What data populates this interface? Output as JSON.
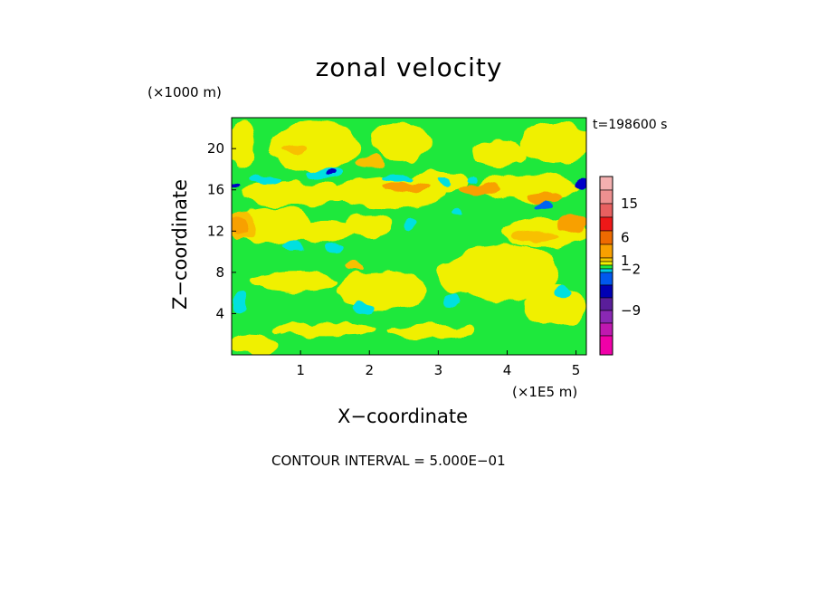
{
  "chart_data": {
    "type": "heatmap",
    "title": "zonal velocity",
    "xlabel": "X−coordinate",
    "ylabel": "Z−coordinate",
    "x_unit": "(×1E5 m)",
    "y_unit": "(×1000 m)",
    "annotation": "t=198600 s",
    "footer": "CONTOUR INTERVAL = 5.000E−01",
    "xlim": [
      0,
      5.15
    ],
    "ylim": [
      0,
      23
    ],
    "x_ticks": [
      "1",
      "2",
      "3",
      "4",
      "5"
    ],
    "y_ticks": [
      "4",
      "8",
      "12",
      "16",
      "20"
    ],
    "colorbar": {
      "tick_labels": [
        "15",
        "6",
        "1",
        "−2",
        "−9"
      ],
      "levels": [
        {
          "color": "#f4b0b0"
        },
        {
          "color": "#ee9090"
        },
        {
          "color": "#e86060"
        },
        {
          "color": "#ee1818"
        },
        {
          "color": "#ee6a00"
        },
        {
          "color": "#f8a000"
        },
        {
          "color": "#f6c800"
        },
        {
          "color": "#f0f000"
        },
        {
          "color": "#1ee83c"
        },
        {
          "color": "#00c8e6"
        },
        {
          "color": "#0058ee"
        },
        {
          "color": "#0000b4"
        },
        {
          "color": "#5a1e9a"
        },
        {
          "color": "#8a28b4"
        },
        {
          "color": "#c018b0"
        },
        {
          "color": "#f000a8"
        }
      ]
    },
    "field_colors": {
      "green": "#1ee83c",
      "yellow": "#f0f000",
      "light_orange": "#f8c000",
      "orange": "#f8a000",
      "cyan": "#00e0e0",
      "blue": "#0064f0",
      "navy": "#0000c8"
    },
    "background_value_color": "green",
    "regions": [
      {
        "cx": 0.15,
        "cy": 20.5,
        "rx": 0.2,
        "ry": 2.2,
        "color": "yellow"
      },
      {
        "cx": 1.2,
        "cy": 20.3,
        "rx": 0.65,
        "ry": 2.4,
        "color": "yellow"
      },
      {
        "cx": 2.45,
        "cy": 20.7,
        "rx": 0.45,
        "ry": 1.9,
        "color": "yellow"
      },
      {
        "cx": 4.7,
        "cy": 20.6,
        "rx": 0.5,
        "ry": 2.0,
        "color": "yellow"
      },
      {
        "cx": 3.9,
        "cy": 19.5,
        "rx": 0.4,
        "ry": 1.3,
        "color": "yellow"
      },
      {
        "cx": 2.0,
        "cy": 18.6,
        "rx": 0.22,
        "ry": 0.6,
        "color": "light_orange"
      },
      {
        "cx": 0.9,
        "cy": 19.9,
        "rx": 0.18,
        "ry": 0.5,
        "color": "light_orange"
      },
      {
        "cx": 0.9,
        "cy": 15.6,
        "rx": 0.8,
        "ry": 1.2,
        "color": "yellow"
      },
      {
        "cx": 2.3,
        "cy": 15.8,
        "rx": 0.8,
        "ry": 1.6,
        "color": "yellow"
      },
      {
        "cx": 3.0,
        "cy": 16.8,
        "rx": 0.45,
        "ry": 1.0,
        "color": "yellow"
      },
      {
        "cx": 4.3,
        "cy": 16.2,
        "rx": 0.75,
        "ry": 1.3,
        "color": "yellow"
      },
      {
        "cx": 2.55,
        "cy": 16.2,
        "rx": 0.35,
        "ry": 0.55,
        "color": "orange"
      },
      {
        "cx": 3.6,
        "cy": 16.0,
        "rx": 0.3,
        "ry": 0.55,
        "color": "orange"
      },
      {
        "cx": 4.55,
        "cy": 15.3,
        "rx": 0.25,
        "ry": 0.5,
        "color": "orange"
      },
      {
        "cx": 0.5,
        "cy": 16.9,
        "rx": 0.22,
        "ry": 0.4,
        "color": "cyan"
      },
      {
        "cx": 1.35,
        "cy": 17.6,
        "rx": 0.25,
        "ry": 0.5,
        "color": "cyan"
      },
      {
        "cx": 1.4,
        "cy": 17.7,
        "rx": 0.07,
        "ry": 0.25,
        "color": "navy"
      },
      {
        "cx": 2.4,
        "cy": 17.2,
        "rx": 0.22,
        "ry": 0.4,
        "color": "cyan"
      },
      {
        "cx": 4.5,
        "cy": 14.5,
        "rx": 0.15,
        "ry": 0.35,
        "color": "blue"
      },
      {
        "cx": 0.05,
        "cy": 16.3,
        "rx": 0.05,
        "ry": 0.25,
        "color": "navy"
      },
      {
        "cx": 5.1,
        "cy": 16.6,
        "rx": 0.09,
        "ry": 0.55,
        "color": "navy"
      },
      {
        "cx": 0.6,
        "cy": 12.5,
        "rx": 0.6,
        "ry": 1.8,
        "color": "yellow"
      },
      {
        "cx": 0.15,
        "cy": 12.6,
        "rx": 0.22,
        "ry": 1.3,
        "color": "light_orange"
      },
      {
        "cx": 0.12,
        "cy": 12.6,
        "rx": 0.12,
        "ry": 0.8,
        "color": "orange"
      },
      {
        "cx": 1.35,
        "cy": 12.0,
        "rx": 0.45,
        "ry": 1.0,
        "color": "yellow"
      },
      {
        "cx": 2.0,
        "cy": 12.5,
        "rx": 0.35,
        "ry": 1.0,
        "color": "yellow"
      },
      {
        "cx": 4.55,
        "cy": 11.9,
        "rx": 0.65,
        "ry": 1.4,
        "color": "yellow"
      },
      {
        "cx": 4.4,
        "cy": 11.5,
        "rx": 0.35,
        "ry": 0.55,
        "color": "light_orange"
      },
      {
        "cx": 4.95,
        "cy": 12.7,
        "rx": 0.22,
        "ry": 1.0,
        "color": "orange"
      },
      {
        "cx": 0.9,
        "cy": 10.6,
        "rx": 0.15,
        "ry": 0.45,
        "color": "cyan"
      },
      {
        "cx": 1.5,
        "cy": 10.5,
        "rx": 0.14,
        "ry": 0.4,
        "color": "cyan"
      },
      {
        "cx": 2.6,
        "cy": 12.8,
        "rx": 0.1,
        "ry": 0.45,
        "color": "cyan"
      },
      {
        "cx": 3.95,
        "cy": 8.0,
        "rx": 0.8,
        "ry": 2.8,
        "color": "yellow"
      },
      {
        "cx": 3.3,
        "cy": 7.6,
        "rx": 0.3,
        "ry": 1.8,
        "color": "yellow"
      },
      {
        "cx": 2.2,
        "cy": 6.2,
        "rx": 0.65,
        "ry": 1.9,
        "color": "yellow"
      },
      {
        "cx": 0.9,
        "cy": 7.1,
        "rx": 0.65,
        "ry": 1.0,
        "color": "yellow"
      },
      {
        "cx": 4.7,
        "cy": 4.8,
        "rx": 0.45,
        "ry": 2.0,
        "color": "yellow"
      },
      {
        "cx": 1.8,
        "cy": 8.5,
        "rx": 0.15,
        "ry": 0.45,
        "color": "light_orange"
      },
      {
        "cx": 0.1,
        "cy": 5.1,
        "rx": 0.12,
        "ry": 0.9,
        "color": "cyan"
      },
      {
        "cx": 1.9,
        "cy": 4.6,
        "rx": 0.15,
        "ry": 0.6,
        "color": "cyan"
      },
      {
        "cx": 4.8,
        "cy": 6.2,
        "rx": 0.14,
        "ry": 0.6,
        "color": "cyan"
      },
      {
        "cx": 3.2,
        "cy": 5.4,
        "rx": 0.13,
        "ry": 0.45,
        "color": "cyan"
      },
      {
        "cx": 1.35,
        "cy": 2.5,
        "rx": 0.75,
        "ry": 0.65,
        "color": "yellow"
      },
      {
        "cx": 2.9,
        "cy": 2.3,
        "rx": 0.6,
        "ry": 0.65,
        "color": "yellow"
      },
      {
        "cx": 0.3,
        "cy": 1.0,
        "rx": 0.35,
        "ry": 1.0,
        "color": "yellow"
      },
      {
        "cx": 3.1,
        "cy": 16.9,
        "rx": 0.09,
        "ry": 0.4,
        "color": "cyan"
      },
      {
        "cx": 3.5,
        "cy": 17.0,
        "rx": 0.07,
        "ry": 0.35,
        "color": "cyan"
      },
      {
        "cx": 3.3,
        "cy": 13.8,
        "rx": 0.08,
        "ry": 0.4,
        "color": "cyan"
      }
    ]
  }
}
